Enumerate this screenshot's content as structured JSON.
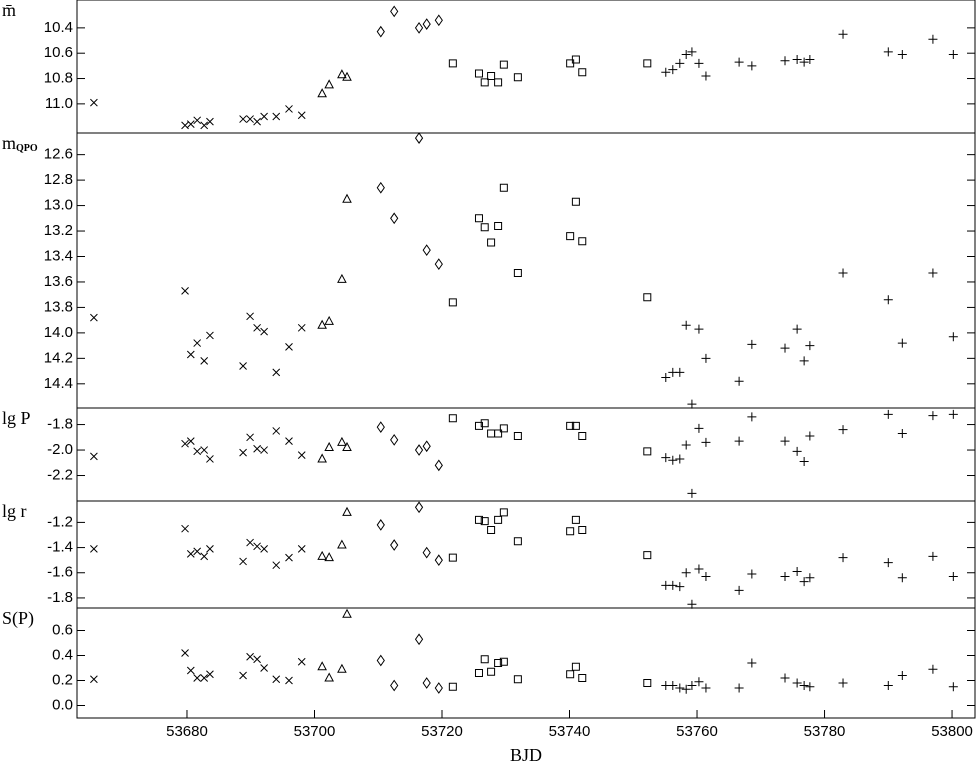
{
  "chart_data": [
    {
      "type": "scatter",
      "ylabel": "m̄",
      "xlim": [
        53662.75,
        53803.6
      ],
      "ylim": [
        11.23,
        10.18
      ],
      "yticks": [
        10.4,
        10.6,
        10.8,
        {
          "value": 11,
          "label": "11.0"
        }
      ],
      "series": [
        {
          "marker": "x",
          "x": [
            53665.4,
            53679.7,
            53680.6,
            53681.6,
            53682.7,
            53683.6,
            53688.8,
            53689.9,
            53691.0,
            53692.1,
            53694.0,
            53696.0,
            53698.0
          ],
          "values": [
            10.99,
            11.17,
            11.16,
            11.13,
            11.17,
            11.14,
            11.12,
            11.12,
            11.14,
            11.1,
            11.1,
            11.04,
            11.09
          ]
        },
        {
          "marker": "triangle",
          "x": [
            53701.2,
            53702.3,
            53704.3,
            53705.1
          ],
          "values": [
            10.92,
            10.85,
            10.77,
            10.79
          ]
        },
        {
          "marker": "diamond",
          "x": [
            53710.4,
            53712.5,
            53716.4,
            53717.6,
            53719.5
          ],
          "values": [
            10.43,
            10.27,
            10.4,
            10.37,
            10.34
          ]
        },
        {
          "marker": "square",
          "x": [
            53721.7,
            53725.8,
            53726.7,
            53727.7,
            53728.8,
            53729.7,
            53731.9,
            53740.1,
            53741.0,
            53742.0,
            53752.2
          ],
          "values": [
            10.68,
            10.76,
            10.83,
            10.78,
            10.83,
            10.69,
            10.79,
            10.68,
            10.65,
            10.75,
            10.68
          ]
        },
        {
          "marker": "plus",
          "x": [
            53755.1,
            53756.2,
            53757.3,
            53758.3,
            53759.2,
            53760.3,
            53761.4,
            53766.6,
            53768.6,
            53773.8,
            53775.7,
            53776.8,
            53777.7,
            53782.9,
            53790.0,
            53792.2,
            53797.0,
            53800.2
          ],
          "values": [
            10.75,
            10.73,
            10.68,
            10.61,
            10.59,
            10.68,
            10.78,
            10.67,
            10.7,
            10.66,
            10.65,
            10.67,
            10.65,
            10.45,
            10.59,
            10.61,
            10.49,
            10.61
          ]
        }
      ]
    },
    {
      "type": "scatter",
      "ylabel": "m",
      "ylabel_subscript": "QPO",
      "xlim": [
        53662.75,
        53803.6
      ],
      "ylim": [
        14.59,
        12.43
      ],
      "yticks": [
        12.6,
        12.8,
        {
          "value": 13,
          "label": "13.0"
        },
        13.2,
        13.4,
        13.6,
        13.8,
        {
          "value": 14,
          "label": "14.0"
        },
        14.2,
        14.4
      ],
      "series": [
        {
          "marker": "x",
          "x": [
            53665.4,
            53679.7,
            53680.6,
            53681.6,
            53682.7,
            53683.6,
            53688.8,
            53689.9,
            53691.0,
            53692.1,
            53694.0,
            53696.0,
            53698.0
          ],
          "values": [
            13.88,
            13.67,
            14.17,
            14.08,
            14.22,
            14.02,
            14.26,
            13.87,
            13.96,
            13.99,
            14.31,
            14.11,
            13.96
          ]
        },
        {
          "marker": "triangle",
          "x": [
            53701.2,
            53702.3,
            53704.3,
            53705.1
          ],
          "values": [
            13.94,
            13.91,
            13.58,
            12.95
          ]
        },
        {
          "marker": "diamond",
          "x": [
            53710.4,
            53712.5,
            53716.4,
            53717.6,
            53719.5
          ],
          "values": [
            12.86,
            13.1,
            12.47,
            13.35,
            13.46
          ]
        },
        {
          "marker": "square",
          "x": [
            53721.7,
            53725.8,
            53726.7,
            53727.7,
            53728.8,
            53729.7,
            53731.9,
            53740.1,
            53741.0,
            53742.0,
            53752.2
          ],
          "values": [
            13.76,
            13.1,
            13.17,
            13.29,
            13.16,
            12.86,
            13.53,
            13.24,
            12.97,
            13.28,
            13.72
          ]
        },
        {
          "marker": "plus",
          "x": [
            53755.1,
            53756.2,
            53757.3,
            53758.3,
            53759.2,
            53760.3,
            53761.4,
            53766.6,
            53768.6,
            53773.8,
            53775.7,
            53776.8,
            53777.7,
            53782.9,
            53790.0,
            53792.2,
            53797.0,
            53800.2
          ],
          "values": [
            14.35,
            14.31,
            14.31,
            13.94,
            14.56,
            13.97,
            14.2,
            14.38,
            14.09,
            14.12,
            13.97,
            14.22,
            14.1,
            13.53,
            13.74,
            14.08,
            13.53,
            14.03
          ]
        }
      ]
    },
    {
      "type": "scatter",
      "ylabel": "lg  P",
      "xlim": [
        53662.75,
        53803.6
      ],
      "ylim": [
        -2.4,
        -1.67
      ],
      "yticks": [
        -1.8,
        {
          "value": -2,
          "label": "-2.0"
        },
        -2.2
      ],
      "series": [
        {
          "marker": "x",
          "x": [
            53665.4,
            53679.7,
            53680.6,
            53681.6,
            53682.7,
            53683.6,
            53688.8,
            53689.9,
            53691.0,
            53692.1,
            53694.0,
            53696.0,
            53698.0
          ],
          "values": [
            -2.05,
            -1.95,
            -1.93,
            -2.01,
            -2.0,
            -2.07,
            -2.02,
            -1.9,
            -1.99,
            -2.0,
            -1.85,
            -1.93,
            -2.04
          ]
        },
        {
          "marker": "triangle",
          "x": [
            53701.2,
            53702.3,
            53704.3,
            53705.1
          ],
          "values": [
            -2.07,
            -1.98,
            -1.94,
            -1.98
          ]
        },
        {
          "marker": "diamond",
          "x": [
            53710.4,
            53712.5,
            53716.4,
            53717.6,
            53719.5
          ],
          "values": [
            -1.82,
            -1.92,
            -2.0,
            -1.97,
            -2.12
          ]
        },
        {
          "marker": "square",
          "x": [
            53721.7,
            53725.8,
            53726.7,
            53727.7,
            53728.8,
            53729.7,
            53731.9,
            53740.1,
            53741.0,
            53742.0,
            53752.2
          ],
          "values": [
            -1.75,
            -1.81,
            -1.79,
            -1.87,
            -1.87,
            -1.83,
            -1.89,
            -1.81,
            -1.81,
            -1.89,
            -2.01
          ]
        },
        {
          "marker": "plus",
          "x": [
            53755.1,
            53756.2,
            53757.3,
            53758.3,
            53759.2,
            53760.3,
            53761.4,
            53766.6,
            53768.6,
            53773.8,
            53775.7,
            53776.8,
            53777.7,
            53782.9,
            53790.0,
            53792.2,
            53797.0,
            53800.2
          ],
          "values": [
            -2.06,
            -2.08,
            -2.07,
            -1.96,
            -2.34,
            -1.83,
            -1.94,
            -1.93,
            -1.74,
            -1.93,
            -2.01,
            -2.09,
            -1.89,
            -1.84,
            -1.72,
            -1.87,
            -1.73,
            -1.72
          ]
        }
      ]
    },
    {
      "type": "scatter",
      "ylabel": "lg  r",
      "xlim": [
        53662.75,
        53803.6
      ],
      "ylim": [
        -1.88,
        -1.03
      ],
      "yticks": [
        -1.2,
        -1.4,
        -1.6,
        -1.8
      ],
      "series": [
        {
          "marker": "x",
          "x": [
            53665.4,
            53679.7,
            53680.6,
            53681.6,
            53682.7,
            53683.6,
            53688.8,
            53689.9,
            53691.0,
            53692.1,
            53694.0,
            53696.0,
            53698.0
          ],
          "values": [
            -1.41,
            -1.25,
            -1.45,
            -1.43,
            -1.47,
            -1.41,
            -1.51,
            -1.36,
            -1.39,
            -1.41,
            -1.54,
            -1.48,
            -1.41
          ]
        },
        {
          "marker": "triangle",
          "x": [
            53701.2,
            53702.3,
            53704.3,
            53705.1
          ],
          "values": [
            -1.47,
            -1.48,
            -1.38,
            -1.12
          ]
        },
        {
          "marker": "diamond",
          "x": [
            53710.4,
            53712.5,
            53716.4,
            53717.6,
            53719.5
          ],
          "values": [
            -1.22,
            -1.38,
            -1.08,
            -1.44,
            -1.5
          ]
        },
        {
          "marker": "square",
          "x": [
            53721.7,
            53725.8,
            53726.7,
            53727.7,
            53728.8,
            53729.7,
            53731.9,
            53740.1,
            53741.0,
            53742.0,
            53752.2
          ],
          "values": [
            -1.48,
            -1.18,
            -1.19,
            -1.26,
            -1.18,
            -1.12,
            -1.35,
            -1.27,
            -1.18,
            -1.26,
            -1.46
          ]
        },
        {
          "marker": "plus",
          "x": [
            53755.1,
            53756.2,
            53757.3,
            53758.3,
            53759.2,
            53760.3,
            53761.4,
            53766.6,
            53768.6,
            53773.8,
            53775.7,
            53776.8,
            53777.7,
            53782.9,
            53790.0,
            53792.2,
            53797.0,
            53800.2
          ],
          "values": [
            -1.7,
            -1.7,
            -1.71,
            -1.6,
            -1.85,
            -1.57,
            -1.63,
            -1.74,
            -1.61,
            -1.63,
            -1.59,
            -1.67,
            -1.64,
            -1.48,
            -1.52,
            -1.64,
            -1.47,
            -1.63
          ]
        }
      ]
    },
    {
      "type": "scatter",
      "ylabel": "S(P)",
      "xlabel": "BJD",
      "xlim": [
        53662.75,
        53803.6
      ],
      "ylim": [
        -0.1,
        0.78
      ],
      "xticks": [
        53680,
        53700,
        53720,
        53740,
        53760,
        53780,
        53800
      ],
      "yticks": [
        {
          "value": 0,
          "label": "0.0"
        },
        0.2,
        0.4,
        0.6
      ],
      "series": [
        {
          "marker": "x",
          "x": [
            53665.4,
            53679.7,
            53680.6,
            53681.6,
            53682.7,
            53683.6,
            53688.8,
            53689.9,
            53691.0,
            53692.1,
            53694.0,
            53696.0,
            53698.0
          ],
          "values": [
            0.21,
            0.42,
            0.28,
            0.22,
            0.22,
            0.25,
            0.24,
            0.39,
            0.37,
            0.3,
            0.21,
            0.2,
            0.35
          ]
        },
        {
          "marker": "triangle",
          "x": [
            53701.2,
            53702.3,
            53704.3,
            53705.1
          ],
          "values": [
            0.31,
            0.22,
            0.29,
            0.73
          ]
        },
        {
          "marker": "diamond",
          "x": [
            53710.4,
            53712.5,
            53716.4,
            53717.6,
            53719.5
          ],
          "values": [
            0.36,
            0.16,
            0.53,
            0.18,
            0.14
          ]
        },
        {
          "marker": "square",
          "x": [
            53721.7,
            53725.8,
            53726.7,
            53727.7,
            53728.8,
            53729.7,
            53731.9,
            53740.1,
            53741.0,
            53742.0,
            53752.2
          ],
          "values": [
            0.15,
            0.26,
            0.37,
            0.27,
            0.34,
            0.35,
            0.21,
            0.25,
            0.31,
            0.22,
            0.18
          ]
        },
        {
          "marker": "plus",
          "x": [
            53755.1,
            53756.2,
            53757.3,
            53758.3,
            53759.2,
            53760.3,
            53761.4,
            53766.6,
            53768.6,
            53773.8,
            53775.7,
            53776.8,
            53777.7,
            53782.9,
            53790.0,
            53792.2,
            53797.0,
            53800.2
          ],
          "values": [
            0.16,
            0.16,
            0.14,
            0.13,
            0.16,
            0.19,
            0.14,
            0.14,
            0.34,
            0.22,
            0.18,
            0.16,
            0.15,
            0.18,
            0.16,
            0.24,
            0.29,
            0.15
          ]
        }
      ]
    }
  ]
}
